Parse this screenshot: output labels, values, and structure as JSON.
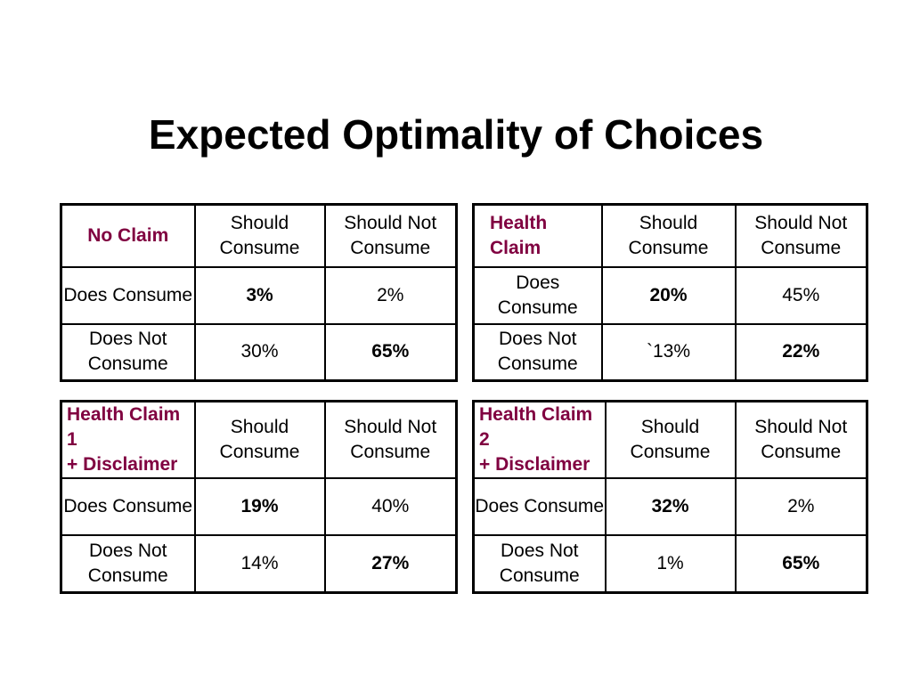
{
  "title": "Expected Optimality of Choices",
  "tables": [
    {
      "label_lines": [
        "No Claim"
      ],
      "col_headers": [
        "Should Consume",
        "Should Not Consume"
      ],
      "rows": [
        {
          "header": "Does Consume",
          "cells": [
            "3%",
            "2%"
          ]
        },
        {
          "header": "Does Not Consume",
          "cells": [
            "30%",
            "65%"
          ]
        }
      ]
    },
    {
      "label_lines": [
        "Health Claim"
      ],
      "col_headers": [
        "Should Consume",
        "Should Not Consume"
      ],
      "rows": [
        {
          "header": "Does Consume",
          "cells": [
            "20%",
            "45%"
          ]
        },
        {
          "header": "Does Not Consume",
          "cells": [
            "`13%",
            "22%"
          ]
        }
      ]
    },
    {
      "label_lines": [
        "Health Claim 1",
        "+ Disclaimer"
      ],
      "col_headers": [
        "Should Consume",
        "Should Not Consume"
      ],
      "rows": [
        {
          "header": "Does Consume",
          "cells": [
            "19%",
            "40%"
          ]
        },
        {
          "header": "Does Not Consume",
          "cells": [
            "14%",
            "27%"
          ]
        }
      ]
    },
    {
      "label_lines": [
        "Health Claim 2",
        "+ Disclaimer"
      ],
      "col_headers": [
        "Should Consume",
        "Should Not Consume"
      ],
      "rows": [
        {
          "header": "Does Consume",
          "cells": [
            "32%",
            "2%"
          ]
        },
        {
          "header": "Does Not Consume",
          "cells": [
            "1%",
            "65%"
          ]
        }
      ]
    }
  ]
}
